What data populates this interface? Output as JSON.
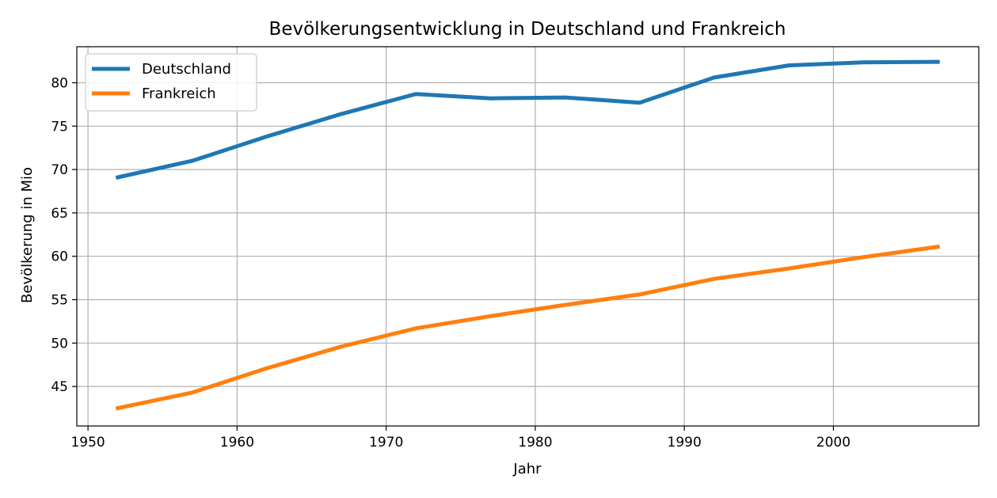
{
  "chart_data": {
    "type": "line",
    "title": "Bevölkerungsentwicklung in Deutschland und Frankreich",
    "xlabel": "Jahr",
    "ylabel": "Bevölkerung in Mio",
    "xlim": [
      1949.25,
      2009.75
    ],
    "ylim": [
      40.45,
      84.15
    ],
    "xticks": [
      1950,
      1960,
      1970,
      1980,
      1990,
      2000
    ],
    "yticks": [
      45,
      50,
      55,
      60,
      65,
      70,
      75,
      80
    ],
    "grid": true,
    "legend_position": "top-left",
    "x": [
      1952,
      1957,
      1962,
      1967,
      1972,
      1977,
      1982,
      1987,
      1992,
      1997,
      2002,
      2007
    ],
    "series": [
      {
        "name": "Deutschland",
        "color": "#1f77b4",
        "values": [
          69.1,
          71.0,
          73.8,
          76.4,
          78.7,
          78.2,
          78.3,
          77.7,
          80.6,
          82.0,
          82.35,
          82.4
        ]
      },
      {
        "name": "Frankreich",
        "color": "#ff7f0e",
        "values": [
          42.5,
          44.3,
          47.1,
          49.6,
          51.7,
          53.1,
          54.4,
          55.6,
          57.4,
          58.6,
          59.9,
          61.1
        ]
      }
    ]
  }
}
